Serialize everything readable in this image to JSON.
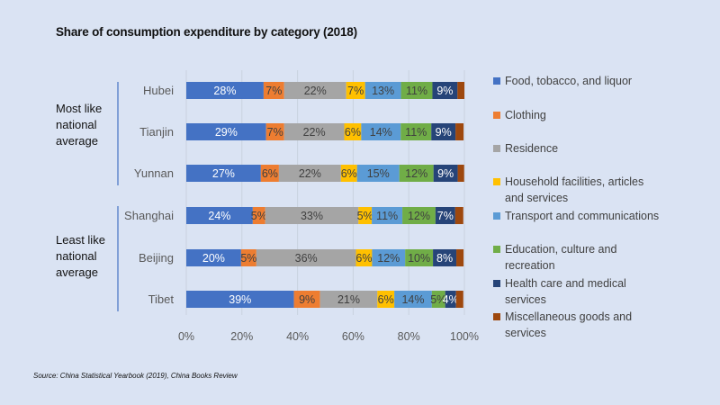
{
  "chart_data": {
    "type": "bar",
    "orientation": "horizontal",
    "stacked": "percent",
    "title": "Share of consumption expenditure by category (2018)",
    "xlabel": "",
    "ylabel": "",
    "xlim": [
      0,
      100
    ],
    "x_ticks": [
      "0%",
      "20%",
      "40%",
      "60%",
      "80%",
      "100%"
    ],
    "grid": "vertical",
    "legend_position": "right",
    "groups": [
      {
        "label": "Most like national average",
        "categories": [
          "Hubei",
          "Tianjin",
          "Yunnan"
        ]
      },
      {
        "label": "Least like national average",
        "categories": [
          "Shanghai",
          "Beijing",
          "Tibet"
        ]
      }
    ],
    "categories": [
      "Hubei",
      "Tianjin",
      "Yunnan",
      "Shanghai",
      "Beijing",
      "Tibet"
    ],
    "series": [
      {
        "name": "Food, tobacco, and liquor",
        "color": "#4472c4",
        "label_color": "#ffffff",
        "values": [
          27.8,
          28.7,
          26.8,
          23.9,
          19.7,
          38.7
        ],
        "labels": [
          "28%",
          "29%",
          "27%",
          "24%",
          "20%",
          "39%"
        ]
      },
      {
        "name": "Clothing",
        "color": "#ed7d31",
        "label_color": "#404040",
        "values": [
          7.4,
          6.5,
          6.5,
          4.5,
          5.5,
          9.4
        ],
        "labels": [
          "7%",
          "7%",
          "6%",
          "5%",
          "5%",
          "9%"
        ]
      },
      {
        "name": "Residence",
        "color": "#a5a5a5",
        "label_color": "#404040",
        "values": [
          22.3,
          21.6,
          22.3,
          33.5,
          35.8,
          20.6
        ],
        "labels": [
          "22%",
          "22%",
          "22%",
          "33%",
          "36%",
          "21%"
        ]
      },
      {
        "name": "Household facilities, articles and services",
        "color": "#ffc000",
        "label_color": "#404040",
        "values": [
          6.8,
          6.1,
          5.8,
          4.8,
          5.8,
          6.1
        ],
        "labels": [
          "7%",
          "6%",
          "6%",
          "5%",
          "6%",
          "6%"
        ]
      },
      {
        "name": "Transport and communications",
        "color": "#5b9bd5",
        "label_color": "#404040",
        "values": [
          12.9,
          14.2,
          15.2,
          11.0,
          11.9,
          13.5
        ],
        "labels": [
          "13%",
          "14%",
          "15%",
          "11%",
          "12%",
          "14%"
        ]
      },
      {
        "name": "Education, culture and recreation",
        "color": "#70ad47",
        "label_color": "#404040",
        "values": [
          11.3,
          11.0,
          12.3,
          11.9,
          10.0,
          4.8
        ],
        "labels": [
          "11%",
          "11%",
          "12%",
          "12%",
          "10%",
          "5%"
        ]
      },
      {
        "name": "Health care and medical services",
        "color": "#264478",
        "label_color": "#ffffff",
        "values": [
          9.0,
          8.7,
          8.7,
          7.1,
          8.4,
          3.9
        ],
        "labels": [
          "9%",
          "9%",
          "9%",
          "7%",
          "8%",
          "4%"
        ]
      },
      {
        "name": "Miscellaneous goods and services",
        "color": "#9e480e",
        "label_color": "#ffffff",
        "values": [
          2.5,
          2.9,
          2.3,
          2.9,
          2.6,
          2.6
        ],
        "labels": [
          "",
          "",
          "",
          "",
          "",
          ""
        ]
      }
    ],
    "legend_lines": [
      [
        "Food, tobacco, and liquor"
      ],
      [
        "Clothing"
      ],
      [
        "Residence"
      ],
      [
        "Household facilities, articles",
        "and services"
      ],
      [
        "Transport and communications"
      ],
      [
        "Education, culture and",
        "recreation"
      ],
      [
        "Health care and medical",
        "services"
      ],
      [
        "Miscellaneous goods and",
        "services"
      ]
    ]
  },
  "group_labels": [
    [
      "Most like",
      "national",
      "average"
    ],
    [
      "Least like",
      "national",
      "average"
    ]
  ],
  "source": "Source: China Statistical Yearbook (2019), China Books Review"
}
